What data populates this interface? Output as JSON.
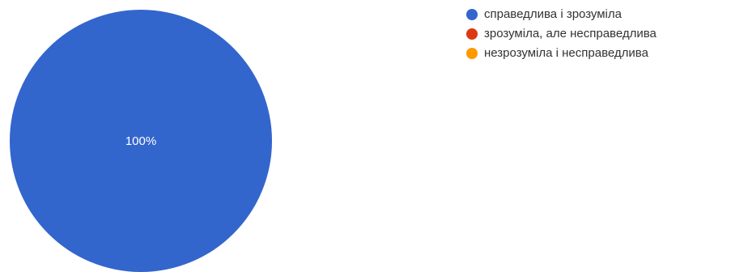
{
  "chart_data": {
    "type": "pie",
    "categories": [
      "справедлива і зрозуміла",
      "зрозуміла, але несправедлива",
      "незрозуміла і несправедлива"
    ],
    "values": [
      100,
      0,
      0
    ],
    "slice_labels": [
      "100%",
      "",
      ""
    ],
    "colors": [
      "#3366cc",
      "#dc3912",
      "#ff9900"
    ],
    "legend_position": "right"
  }
}
